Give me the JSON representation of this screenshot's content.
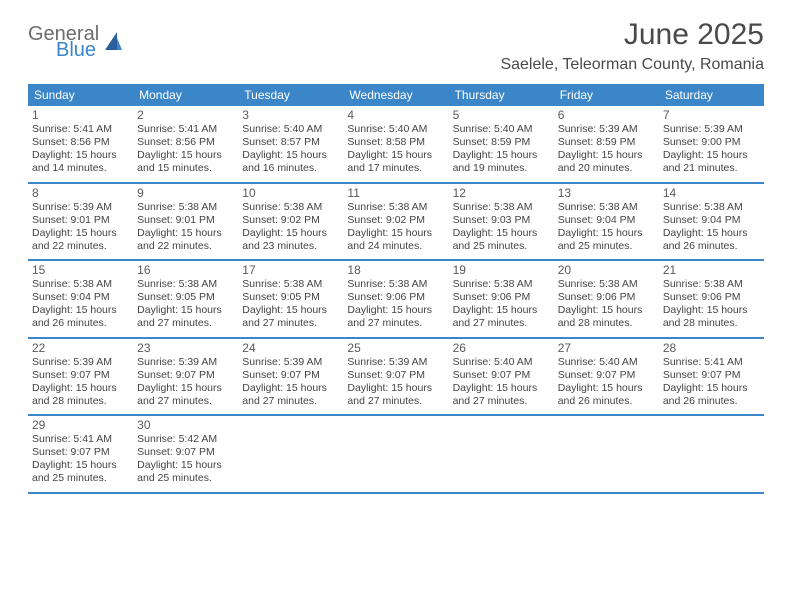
{
  "logo": {
    "general": "General",
    "blue": "Blue"
  },
  "title": "June 2025",
  "location": "Saelele, Teleorman County, Romania",
  "dayHeaders": [
    "Sunday",
    "Monday",
    "Tuesday",
    "Wednesday",
    "Thursday",
    "Friday",
    "Saturday"
  ],
  "colors": {
    "header_bg": "#3a86c8",
    "header_text": "#ffffff",
    "text": "#444444",
    "title_text": "#4a4a4a",
    "logo_gray": "#6c6c6c",
    "logo_blue": "#3a86c8",
    "border": "#3a86c8",
    "background": "#ffffff"
  },
  "typography": {
    "title_fontsize": 30,
    "location_fontsize": 16,
    "dayheader_fontsize": 12,
    "daynum_fontsize": 12,
    "body_fontsize": 10.5
  },
  "weeks": [
    [
      {
        "num": "1",
        "sunrise": "5:41 AM",
        "sunset": "8:56 PM",
        "daylight_h": "15",
        "daylight_m": "14"
      },
      {
        "num": "2",
        "sunrise": "5:41 AM",
        "sunset": "8:56 PM",
        "daylight_h": "15",
        "daylight_m": "15"
      },
      {
        "num": "3",
        "sunrise": "5:40 AM",
        "sunset": "8:57 PM",
        "daylight_h": "15",
        "daylight_m": "16"
      },
      {
        "num": "4",
        "sunrise": "5:40 AM",
        "sunset": "8:58 PM",
        "daylight_h": "15",
        "daylight_m": "17"
      },
      {
        "num": "5",
        "sunrise": "5:40 AM",
        "sunset": "8:59 PM",
        "daylight_h": "15",
        "daylight_m": "19"
      },
      {
        "num": "6",
        "sunrise": "5:39 AM",
        "sunset": "8:59 PM",
        "daylight_h": "15",
        "daylight_m": "20"
      },
      {
        "num": "7",
        "sunrise": "5:39 AM",
        "sunset": "9:00 PM",
        "daylight_h": "15",
        "daylight_m": "21"
      }
    ],
    [
      {
        "num": "8",
        "sunrise": "5:39 AM",
        "sunset": "9:01 PM",
        "daylight_h": "15",
        "daylight_m": "22"
      },
      {
        "num": "9",
        "sunrise": "5:38 AM",
        "sunset": "9:01 PM",
        "daylight_h": "15",
        "daylight_m": "22"
      },
      {
        "num": "10",
        "sunrise": "5:38 AM",
        "sunset": "9:02 PM",
        "daylight_h": "15",
        "daylight_m": "23"
      },
      {
        "num": "11",
        "sunrise": "5:38 AM",
        "sunset": "9:02 PM",
        "daylight_h": "15",
        "daylight_m": "24"
      },
      {
        "num": "12",
        "sunrise": "5:38 AM",
        "sunset": "9:03 PM",
        "daylight_h": "15",
        "daylight_m": "25"
      },
      {
        "num": "13",
        "sunrise": "5:38 AM",
        "sunset": "9:04 PM",
        "daylight_h": "15",
        "daylight_m": "25"
      },
      {
        "num": "14",
        "sunrise": "5:38 AM",
        "sunset": "9:04 PM",
        "daylight_h": "15",
        "daylight_m": "26"
      }
    ],
    [
      {
        "num": "15",
        "sunrise": "5:38 AM",
        "sunset": "9:04 PM",
        "daylight_h": "15",
        "daylight_m": "26"
      },
      {
        "num": "16",
        "sunrise": "5:38 AM",
        "sunset": "9:05 PM",
        "daylight_h": "15",
        "daylight_m": "27"
      },
      {
        "num": "17",
        "sunrise": "5:38 AM",
        "sunset": "9:05 PM",
        "daylight_h": "15",
        "daylight_m": "27"
      },
      {
        "num": "18",
        "sunrise": "5:38 AM",
        "sunset": "9:06 PM",
        "daylight_h": "15",
        "daylight_m": "27"
      },
      {
        "num": "19",
        "sunrise": "5:38 AM",
        "sunset": "9:06 PM",
        "daylight_h": "15",
        "daylight_m": "27"
      },
      {
        "num": "20",
        "sunrise": "5:38 AM",
        "sunset": "9:06 PM",
        "daylight_h": "15",
        "daylight_m": "28"
      },
      {
        "num": "21",
        "sunrise": "5:38 AM",
        "sunset": "9:06 PM",
        "daylight_h": "15",
        "daylight_m": "28"
      }
    ],
    [
      {
        "num": "22",
        "sunrise": "5:39 AM",
        "sunset": "9:07 PM",
        "daylight_h": "15",
        "daylight_m": "28"
      },
      {
        "num": "23",
        "sunrise": "5:39 AM",
        "sunset": "9:07 PM",
        "daylight_h": "15",
        "daylight_m": "27"
      },
      {
        "num": "24",
        "sunrise": "5:39 AM",
        "sunset": "9:07 PM",
        "daylight_h": "15",
        "daylight_m": "27"
      },
      {
        "num": "25",
        "sunrise": "5:39 AM",
        "sunset": "9:07 PM",
        "daylight_h": "15",
        "daylight_m": "27"
      },
      {
        "num": "26",
        "sunrise": "5:40 AM",
        "sunset": "9:07 PM",
        "daylight_h": "15",
        "daylight_m": "27"
      },
      {
        "num": "27",
        "sunrise": "5:40 AM",
        "sunset": "9:07 PM",
        "daylight_h": "15",
        "daylight_m": "26"
      },
      {
        "num": "28",
        "sunrise": "5:41 AM",
        "sunset": "9:07 PM",
        "daylight_h": "15",
        "daylight_m": "26"
      }
    ],
    [
      {
        "num": "29",
        "sunrise": "5:41 AM",
        "sunset": "9:07 PM",
        "daylight_h": "15",
        "daylight_m": "25"
      },
      {
        "num": "30",
        "sunrise": "5:42 AM",
        "sunset": "9:07 PM",
        "daylight_h": "15",
        "daylight_m": "25"
      },
      null,
      null,
      null,
      null,
      null
    ]
  ],
  "labels": {
    "sunrise": "Sunrise:",
    "sunset": "Sunset:",
    "daylight_prefix": "Daylight:",
    "hours_word": "hours",
    "and_word": "and",
    "minutes_word": "minutes."
  }
}
